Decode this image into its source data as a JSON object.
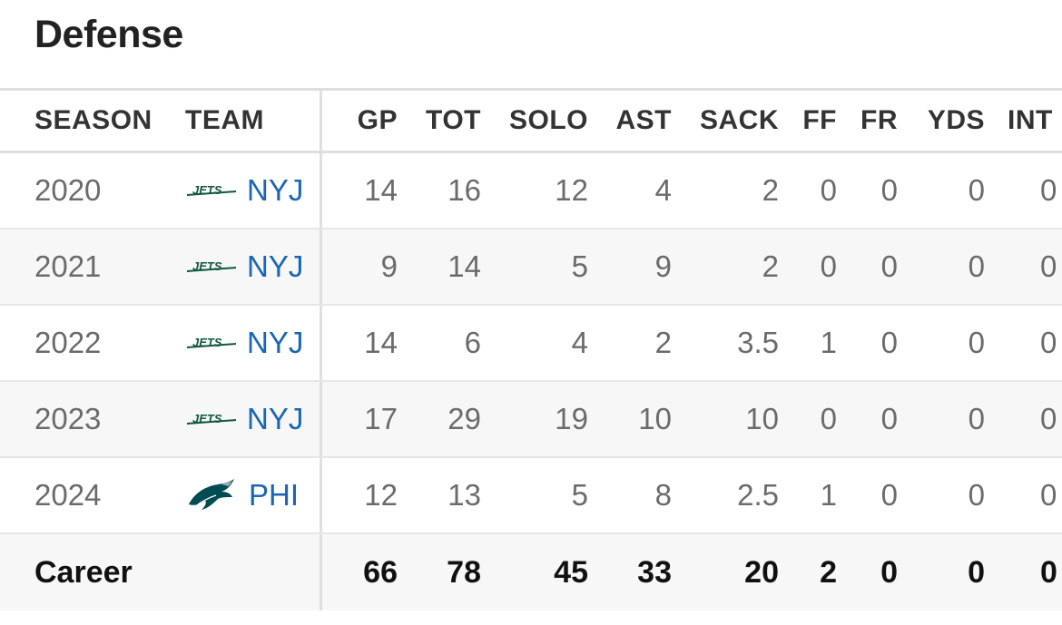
{
  "section_title": "Defense",
  "columns": {
    "season": "SEASON",
    "team": "TEAM",
    "gp": "GP",
    "tot": "TOT",
    "solo": "SOLO",
    "ast": "AST",
    "sack": "SACK",
    "ff": "FF",
    "fr": "FR",
    "yds": "YDS",
    "int": "INT"
  },
  "rows": [
    {
      "season": "2020",
      "team": "NYJ",
      "logo": "jets-logo",
      "gp": "14",
      "tot": "16",
      "solo": "12",
      "ast": "4",
      "sack": "2",
      "ff": "0",
      "fr": "0",
      "yds": "0",
      "int": "0"
    },
    {
      "season": "2021",
      "team": "NYJ",
      "logo": "jets-logo",
      "gp": "9",
      "tot": "14",
      "solo": "5",
      "ast": "9",
      "sack": "2",
      "ff": "0",
      "fr": "0",
      "yds": "0",
      "int": "0"
    },
    {
      "season": "2022",
      "team": "NYJ",
      "logo": "jets-logo",
      "gp": "14",
      "tot": "6",
      "solo": "4",
      "ast": "2",
      "sack": "3.5",
      "ff": "1",
      "fr": "0",
      "yds": "0",
      "int": "0"
    },
    {
      "season": "2023",
      "team": "NYJ",
      "logo": "jets-logo",
      "gp": "17",
      "tot": "29",
      "solo": "19",
      "ast": "10",
      "sack": "10",
      "ff": "0",
      "fr": "0",
      "yds": "0",
      "int": "0"
    },
    {
      "season": "2024",
      "team": "PHI",
      "logo": "eagles-logo",
      "gp": "12",
      "tot": "13",
      "solo": "5",
      "ast": "8",
      "sack": "2.5",
      "ff": "1",
      "fr": "0",
      "yds": "0",
      "int": "0"
    }
  ],
  "career": {
    "label": "Career",
    "gp": "66",
    "tot": "78",
    "solo": "45",
    "ast": "33",
    "sack": "20",
    "ff": "2",
    "fr": "0",
    "yds": "0",
    "int": "0"
  },
  "colors": {
    "team_link": "#1a66b5",
    "jets_green": "#125740",
    "eagles_green": "#004c54"
  }
}
